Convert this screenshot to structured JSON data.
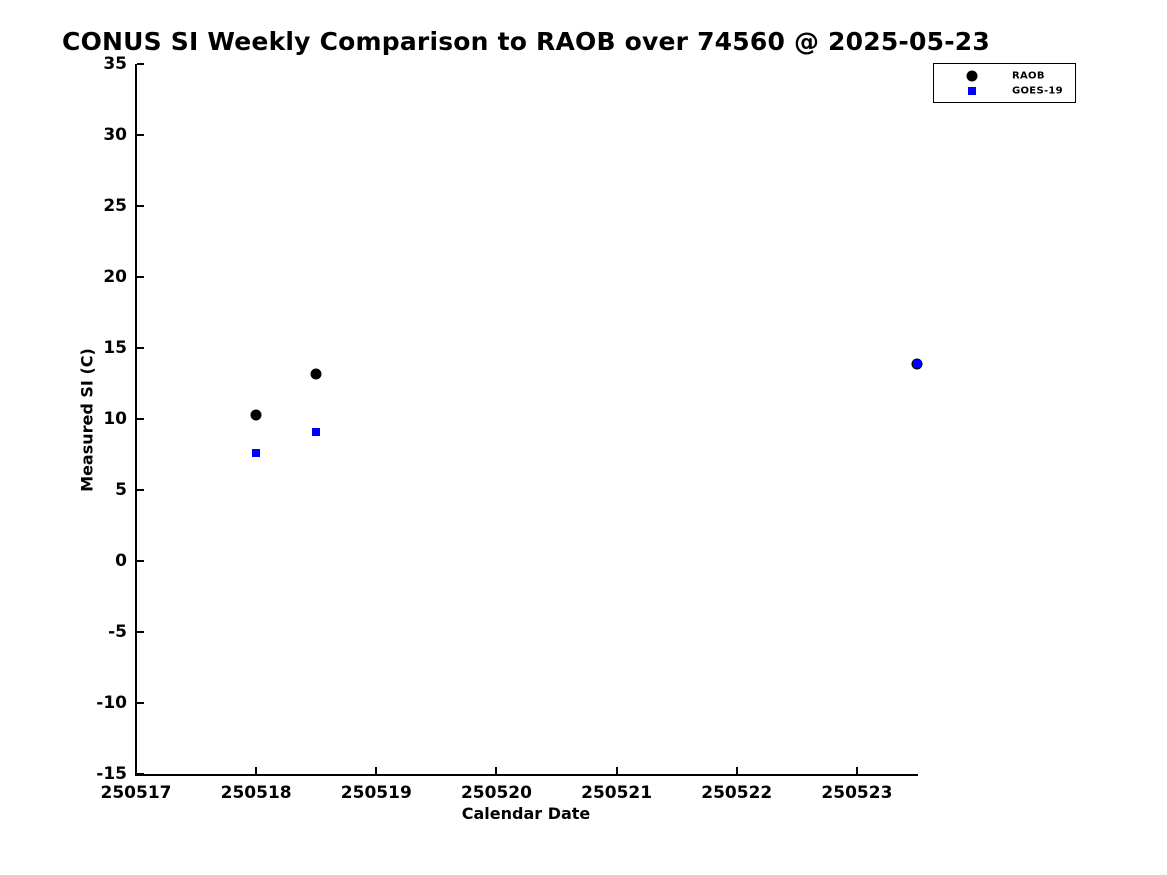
{
  "chart_data": {
    "type": "scatter",
    "title": "CONUS SI Weekly Comparison to RAOB over 74560 @ 2025-05-23",
    "xlabel": "Calendar Date",
    "ylabel": "Measured SI (C)",
    "xlim": [
      250517,
      250523.5
    ],
    "ylim": [
      -15,
      35
    ],
    "x_ticks": [
      250517,
      250518,
      250519,
      250520,
      250521,
      250522,
      250523
    ],
    "y_ticks": [
      35,
      30,
      25,
      20,
      15,
      10,
      5,
      0,
      -5,
      -10,
      -15
    ],
    "grid": false,
    "legend_position": "top-right",
    "axis_color": "#000000",
    "background_color": "#ffffff",
    "series": [
      {
        "name": "RAOB",
        "marker": "circle",
        "color": "#000000",
        "points": [
          [
            250518.0,
            10.3
          ],
          [
            250518.5,
            13.2
          ],
          [
            250523.5,
            13.9
          ]
        ]
      },
      {
        "name": "GOES-19",
        "marker": "square",
        "color": "#0000ff",
        "points": [
          [
            250518.0,
            7.6
          ],
          [
            250518.5,
            9.1
          ],
          [
            250523.5,
            13.9
          ]
        ]
      }
    ]
  }
}
